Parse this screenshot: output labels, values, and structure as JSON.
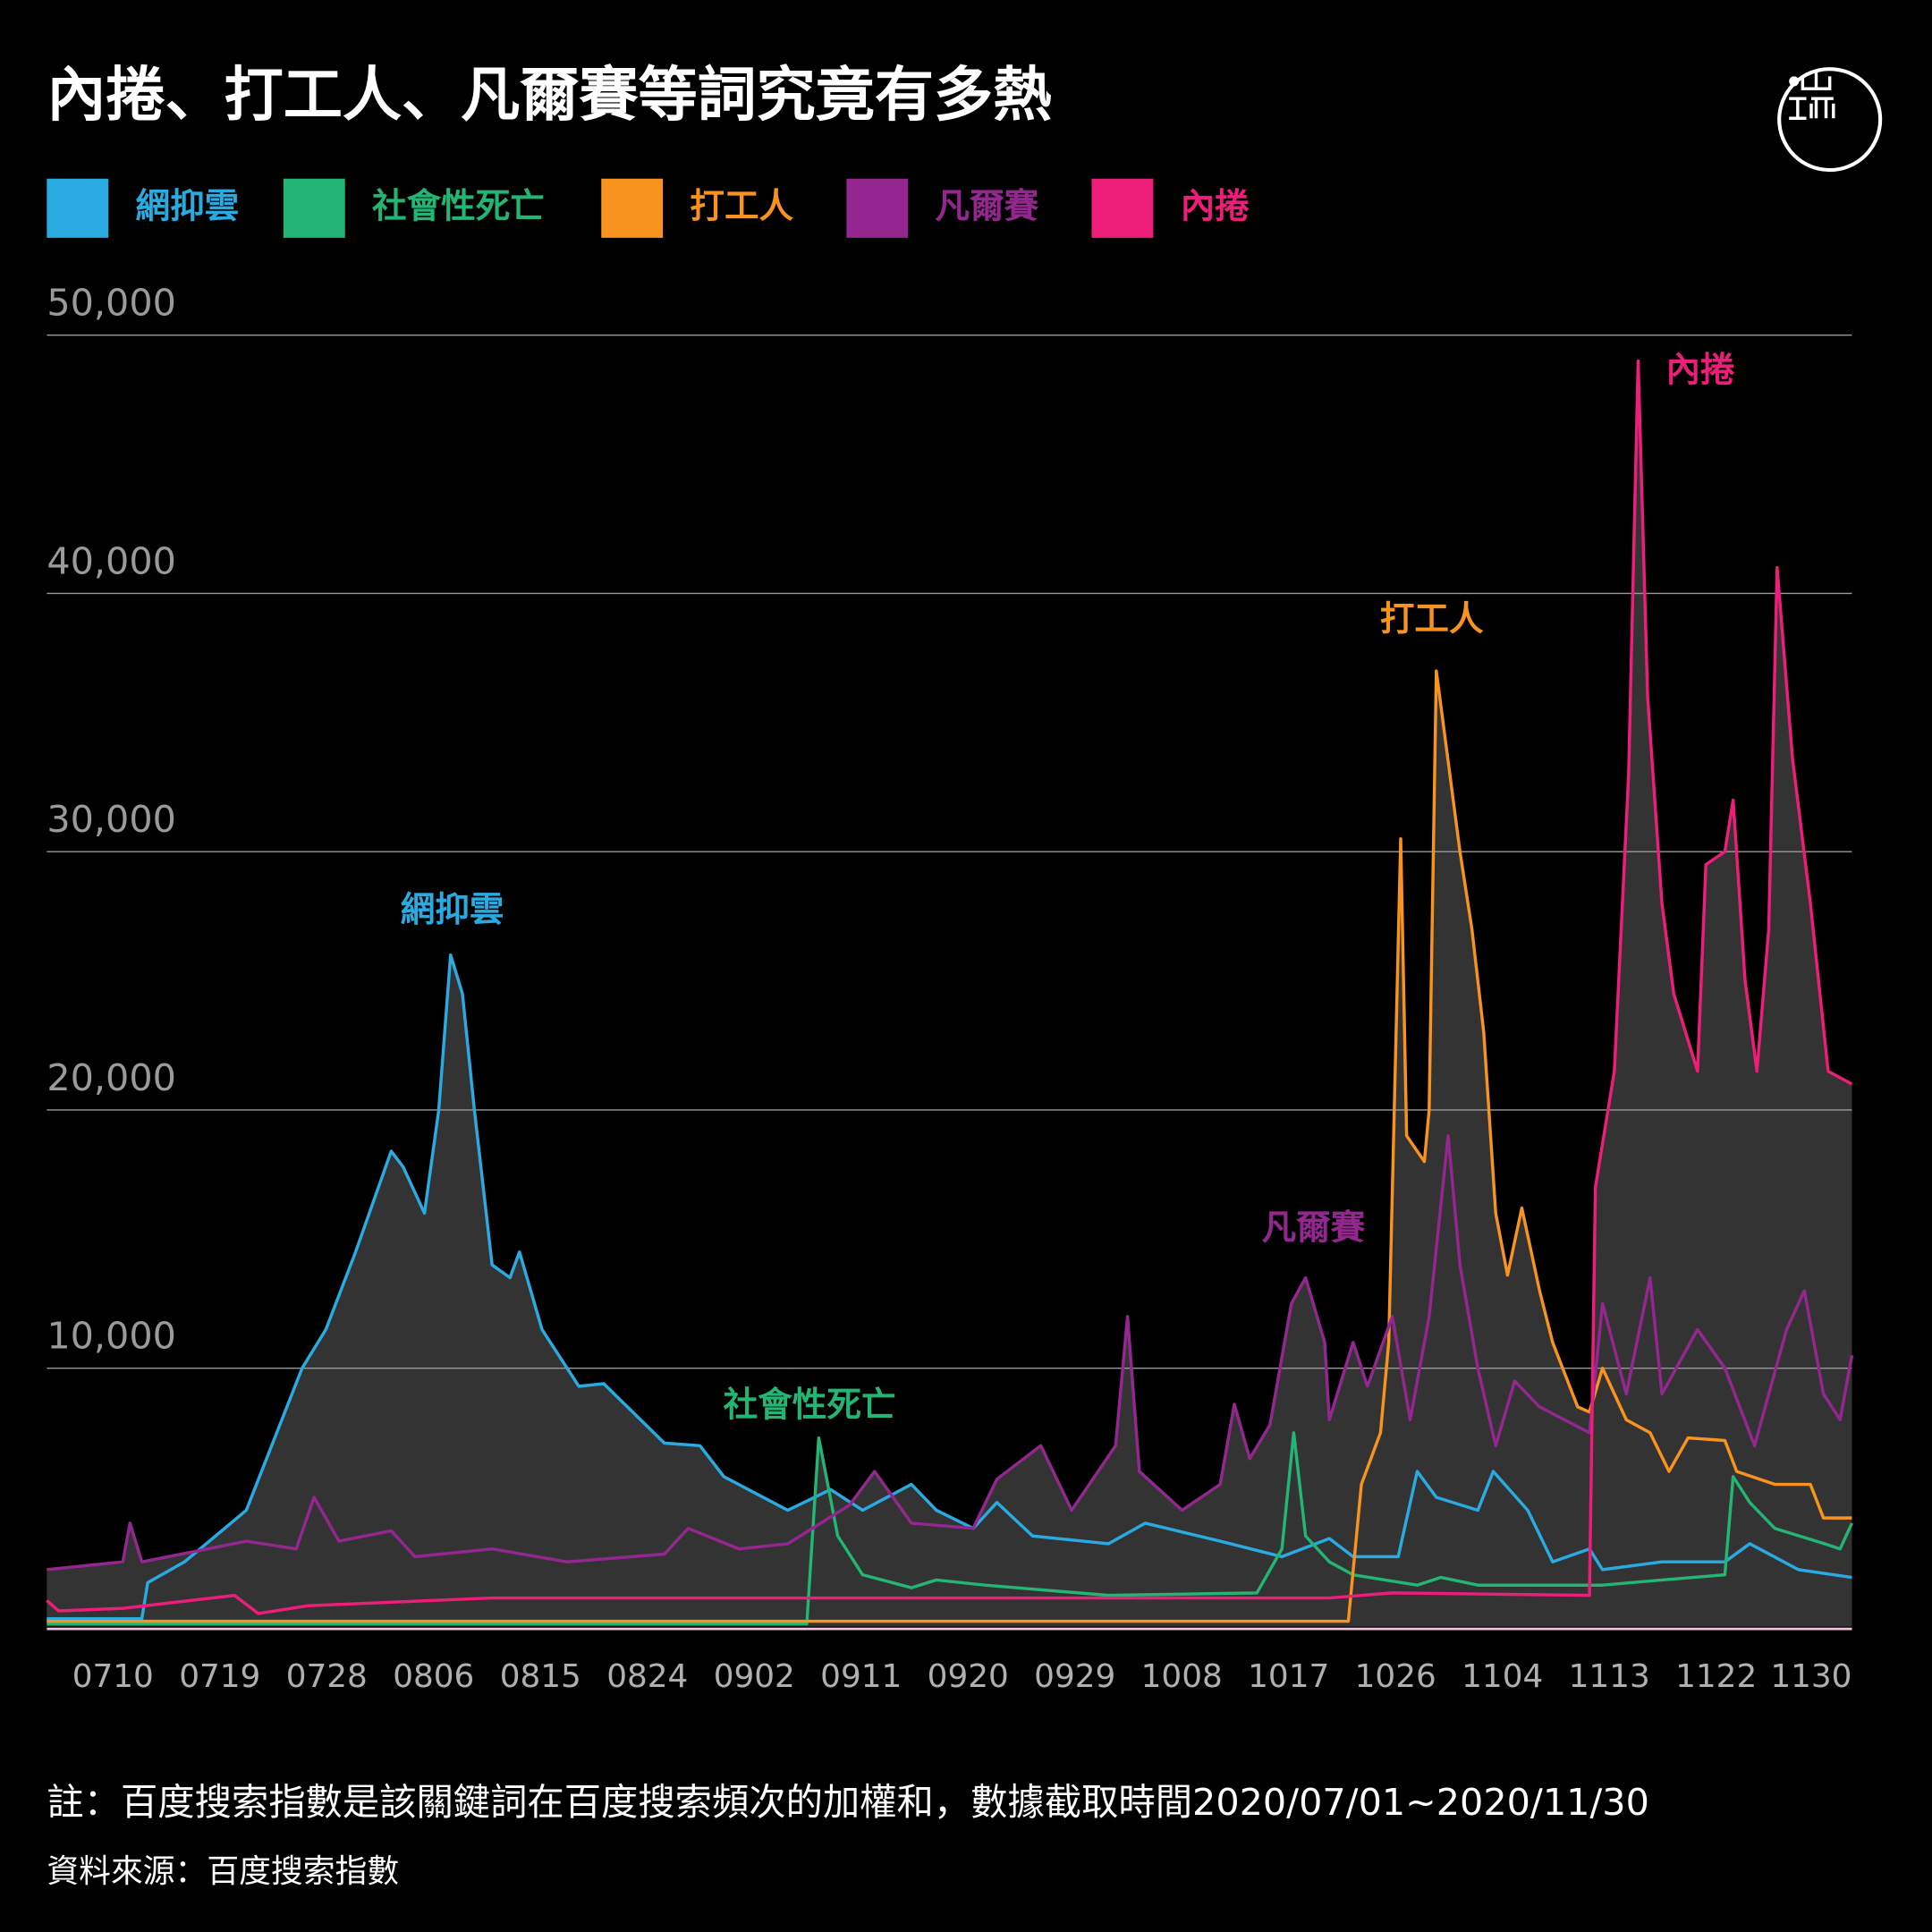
{
  "chart_data": {
    "type": "line",
    "title": "內捲、打工人、凡爾賽等詞究竟有多熱",
    "note": "註：百度搜索指數是該關鍵詞在百度搜索頻次的加權和，數據截取時間2020/07/01~2020/11/30",
    "source": "資料來源：百度搜索指數",
    "xlim": [
      0,
      152
    ],
    "xticks": [
      {
        "value": 9,
        "label": "0710"
      },
      {
        "value": 18,
        "label": "0719"
      },
      {
        "value": 27,
        "label": "0728"
      },
      {
        "value": 36,
        "label": "0806"
      },
      {
        "value": 45,
        "label": "0815"
      },
      {
        "value": 54,
        "label": "0824"
      },
      {
        "value": 63,
        "label": "0902"
      },
      {
        "value": 72,
        "label": "0911"
      },
      {
        "value": 81,
        "label": "0920"
      },
      {
        "value": 90,
        "label": "0929"
      },
      {
        "value": 99,
        "label": "1008"
      },
      {
        "value": 108,
        "label": "1017"
      },
      {
        "value": 117,
        "label": "1026"
      },
      {
        "value": 126,
        "label": "1104"
      },
      {
        "value": 135,
        "label": "1113"
      },
      {
        "value": 144,
        "label": "1122"
      },
      {
        "value": 152,
        "label": "1130"
      }
    ],
    "ylim": [
      0,
      50000
    ],
    "yticks": [
      {
        "value": 10000,
        "label": "10,000"
      },
      {
        "value": 20000,
        "label": "20,000"
      },
      {
        "value": 30000,
        "label": "30,000"
      },
      {
        "value": 40000,
        "label": "40,000"
      },
      {
        "value": 50000,
        "label": "50,000"
      }
    ],
    "grid": true,
    "legend": "top-left",
    "series": [
      {
        "name": "網抑雲",
        "color": "#29abe2",
        "x": [
          0,
          8,
          8.5,
          11.6,
          16.8,
          21.5,
          23.5,
          26,
          29,
          30,
          31.8,
          33,
          34,
          35,
          36,
          37.5,
          39,
          39.8,
          41.7,
          44.8,
          46.9,
          52,
          55,
          57,
          62.4,
          66,
          68.7,
          72.8,
          74.9,
          78,
          80,
          83,
          89.4,
          92.5,
          98.8,
          104,
          108,
          110,
          113.8,
          115.4,
          117,
          120.5,
          121.8,
          124.7,
          126.8,
          129.9,
          131,
          136,
          141.3,
          143.4,
          147.5,
          152
        ],
        "values": [
          300,
          300,
          1700,
          2500,
          4500,
          10000,
          11500,
          14500,
          18400,
          17800,
          16000,
          20000,
          26000,
          24500,
          20000,
          14000,
          13500,
          14500,
          11500,
          9300,
          9400,
          7100,
          7000,
          5800,
          4500,
          5300,
          4500,
          5500,
          4500,
          3800,
          4800,
          3500,
          3200,
          4000,
          3300,
          2700,
          3400,
          2700,
          2700,
          6000,
          5000,
          4500,
          6000,
          4500,
          2500,
          3000,
          2200,
          2500,
          2500,
          3200,
          2200,
          1900
        ]
      },
      {
        "name": "社會性死亡",
        "color": "#22b573",
        "x": [
          0,
          64,
          65,
          66.6,
          68.7,
          72.8,
          74.9,
          79,
          89.4,
          101.9,
          104,
          105,
          106,
          108,
          110,
          115.4,
          117.4,
          120.5,
          131,
          136,
          141.3,
          142,
          143.4,
          145.5,
          149.7,
          151,
          152
        ],
        "values": [
          100,
          100,
          7300,
          3500,
          2000,
          1500,
          1800,
          1600,
          1200,
          1300,
          3000,
          7500,
          3500,
          2500,
          2000,
          1600,
          1900,
          1600,
          1600,
          1800,
          2000,
          5800,
          4800,
          3800,
          3200,
          3000,
          4000
        ]
      },
      {
        "name": "打工人",
        "color": "#f7931e",
        "x": [
          0,
          109.6,
          110.7,
          112.3,
          113,
          114,
          114.5,
          116,
          116.4,
          117,
          118,
          119,
          120,
          121,
          122,
          123,
          124.2,
          125.7,
          126.8,
          128.9,
          129.9,
          131,
          133,
          135,
          136.6,
          138.2,
          141.3,
          142.3,
          145.5,
          148.5,
          149.6,
          152
        ],
        "values": [
          200,
          200,
          5500,
          7500,
          11000,
          30500,
          19000,
          18000,
          20000,
          37000,
          33500,
          30000,
          27000,
          23000,
          16000,
          13600,
          16200,
          13000,
          11000,
          8500,
          8300,
          10000,
          8000,
          7500,
          6000,
          7300,
          7200,
          6000,
          5500,
          5500,
          4200,
          4200
        ]
      },
      {
        "name": "凡爾賽",
        "color": "#93278f",
        "x": [
          0,
          6.4,
          7,
          8,
          16.8,
          21,
          22.5,
          24.6,
          29,
          31,
          37.5,
          43.8,
          52,
          54,
          58.3,
          62.4,
          67.6,
          69.7,
          72.8,
          78,
          80,
          83.7,
          86.3,
          90,
          91,
          92,
          95.6,
          98.8,
          100,
          101.3,
          103,
          104.8,
          106,
          107.6,
          108,
          110,
          111.2,
          113.3,
          114.8,
          116.4,
          118,
          119,
          120.5,
          122,
          123.6,
          125.7,
          129.9,
          131,
          133,
          135,
          136,
          139,
          141.3,
          143.8,
          146.5,
          148,
          149.6,
          151,
          152
        ],
        "values": [
          2200,
          2500,
          4000,
          2500,
          3300,
          3000,
          5000,
          3300,
          3700,
          2700,
          3000,
          2500,
          2800,
          3800,
          3000,
          3200,
          4700,
          6000,
          4000,
          3800,
          5700,
          7000,
          4500,
          7000,
          12000,
          6000,
          4500,
          5500,
          8600,
          6500,
          7800,
          12500,
          13500,
          11000,
          8000,
          11000,
          9300,
          12000,
          8000,
          12000,
          19000,
          14000,
          10000,
          7000,
          9500,
          8500,
          7500,
          12500,
          9000,
          13500,
          9000,
          11500,
          10000,
          7000,
          11500,
          13000,
          9000,
          8000,
          10500
        ]
      },
      {
        "name": "內捲",
        "color": "#ed1e79",
        "x": [
          0,
          1,
          6.4,
          15.8,
          17.8,
          22,
          37.5,
          108,
          113.3,
          129.9,
          130.4,
          132,
          133.2,
          134,
          134.8,
          136,
          137,
          139,
          139.7,
          141.3,
          142,
          143,
          144,
          145,
          145.7,
          147,
          148.5,
          150,
          152
        ],
        "values": [
          1000,
          600,
          700,
          1200,
          500,
          800,
          1100,
          1100,
          1300,
          1200,
          17000,
          21500,
          33000,
          49000,
          36000,
          28000,
          24500,
          21500,
          29500,
          30000,
          32000,
          25000,
          21500,
          27000,
          41000,
          33600,
          28000,
          21500,
          21000
        ]
      }
    ]
  }
}
